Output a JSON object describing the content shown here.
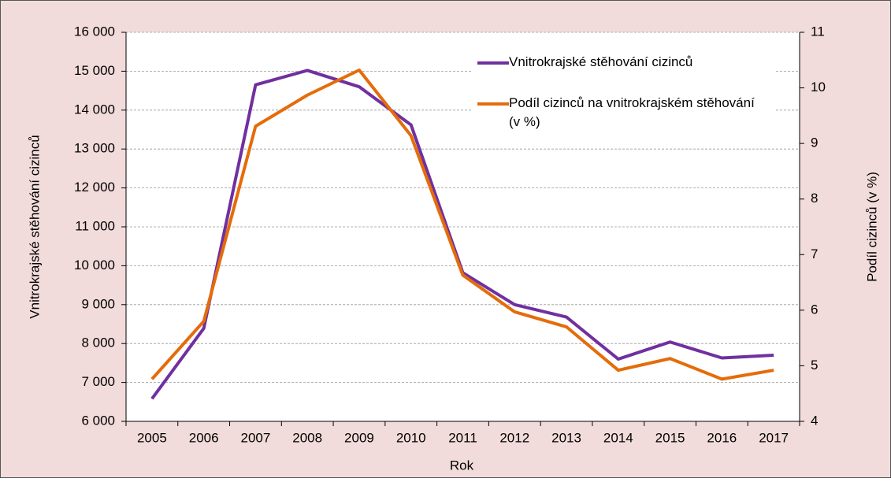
{
  "chart_data": {
    "type": "line",
    "categories": [
      "2005",
      "2006",
      "2007",
      "2008",
      "2009",
      "2010",
      "2011",
      "2012",
      "2013",
      "2014",
      "2015",
      "2016",
      "2017"
    ],
    "series": [
      {
        "name": "Vnitrokrajské stěhování cizinců",
        "color": "#7030a0",
        "axis": "y",
        "values": [
          6580,
          8390,
          14650,
          15020,
          14600,
          13620,
          9820,
          9000,
          8680,
          7600,
          8040,
          7630,
          7700
        ]
      },
      {
        "name": "Podíl cizinců na vnitrokrajském stěhování (v %)",
        "color": "#e46c0a",
        "axis": "y2",
        "values": [
          4.76,
          5.8,
          9.31,
          9.87,
          10.32,
          9.14,
          6.63,
          5.97,
          5.7,
          4.92,
          5.13,
          4.76,
          4.92
        ]
      }
    ],
    "xlabel": "Rok",
    "ylabel": "Vnitrokrajské stěhování cizinců",
    "y2label": "Podíl cizinců (v %)",
    "ylim": [
      6000,
      16000
    ],
    "yticks": [
      {
        "value": 6000,
        "label": "6 000"
      },
      {
        "value": 7000,
        "label": "7 000"
      },
      {
        "value": 8000,
        "label": "8 000"
      },
      {
        "value": 9000,
        "label": "9 000"
      },
      {
        "value": 10000,
        "label": "10 000"
      },
      {
        "value": 11000,
        "label": "11 000"
      },
      {
        "value": 12000,
        "label": "12 000"
      },
      {
        "value": 13000,
        "label": "13 000"
      },
      {
        "value": 14000,
        "label": "14 000"
      },
      {
        "value": 15000,
        "label": "15 000"
      },
      {
        "value": 16000,
        "label": "16 000"
      }
    ],
    "y2lim": [
      4,
      11
    ],
    "y2ticks": [
      4,
      5,
      6,
      7,
      8,
      9,
      10,
      11
    ],
    "grid": true,
    "legend": "top-right"
  }
}
